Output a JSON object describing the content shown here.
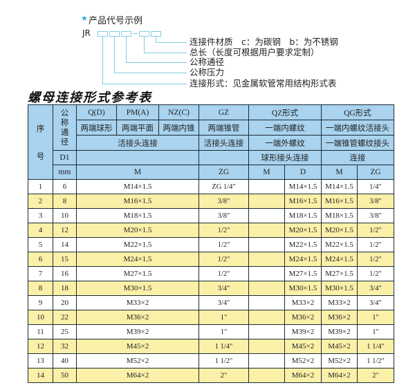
{
  "example": {
    "star_icon": "star-icon",
    "title": "产品代号示例",
    "code_prefix": "JR",
    "labels": [
      "连接件材质　c：为碳钢　b：为不锈钢",
      "总长（长度可根据用户要求定制）",
      "公称通径",
      "公称压力",
      "连接形式：见金属软管常用结构形式表"
    ]
  },
  "table_title": "螺母连接形式参考表",
  "colors": {
    "header_bg": "#a9d3ee",
    "alt_row_bg": "#fbf0a8",
    "guide_line": "#7fcfe0"
  },
  "header": {
    "seq": "序　号",
    "seq_top": "序",
    "seq_bottom": "号",
    "nominal": "公称通径",
    "row1": [
      "Q(D)",
      "PM(A)",
      "NZ(C)",
      "GZ",
      "QZ形式",
      "QG形式"
    ],
    "row2": [
      "两端球形",
      "两端平面",
      "两端内锥",
      "两端锥管",
      "一端内螺纹",
      "一端内螺纹活接头"
    ],
    "row3": [
      "活接头连接",
      "活接头连接",
      "一端外螺纹",
      "一端锥管螺纹接头"
    ],
    "row4": [
      "D1",
      "",
      "",
      "球形接头连接",
      "连接"
    ],
    "row5": [
      "mm",
      "M",
      "ZG",
      "M",
      "D",
      "M",
      "ZG"
    ]
  },
  "rows": [
    {
      "no": "1",
      "d1": "6",
      "m": "M14×1.5",
      "zg": "ZG 1/4\"",
      "qz_m": "",
      "qz_d": "M14×1.5",
      "qg_m": "M14×1.5",
      "qg_zg": "1/4\""
    },
    {
      "no": "2",
      "d1": "8",
      "m": "M16×1.5",
      "zg": "3/8\"",
      "qz_m": "",
      "qz_d": "M16×1.5",
      "qg_m": "M16×1.5",
      "qg_zg": "3/8\""
    },
    {
      "no": "3",
      "d1": "10",
      "m": "M18×1.5",
      "zg": "3/8\"",
      "qz_m": "",
      "qz_d": "M18×1.5",
      "qg_m": "M18×1.5",
      "qg_zg": "3/8\""
    },
    {
      "no": "4",
      "d1": "12",
      "m": "M20×1.5",
      "zg": "1/2\"",
      "qz_m": "",
      "qz_d": "M20×1.5",
      "qg_m": "M20×1.5",
      "qg_zg": "1/2\""
    },
    {
      "no": "5",
      "d1": "14",
      "m": "M22×1.5",
      "zg": "1/2\"",
      "qz_m": "",
      "qz_d": "M22×1.5",
      "qg_m": "M22×1.5",
      "qg_zg": "1/2\""
    },
    {
      "no": "6",
      "d1": "15",
      "m": "M24×1.5",
      "zg": "1/2\"",
      "qz_m": "",
      "qz_d": "M24×1.5",
      "qg_m": "M24×1.5",
      "qg_zg": "1/2\""
    },
    {
      "no": "7",
      "d1": "16",
      "m": "M27×1.5",
      "zg": "1/2\"",
      "qz_m": "",
      "qz_d": "M27×1.5",
      "qg_m": "M27×1.5",
      "qg_zg": "1/2\""
    },
    {
      "no": "8",
      "d1": "18",
      "m": "M30×1.5",
      "zg": "3/4\"",
      "qz_m": "",
      "qz_d": "M30×1.5",
      "qg_m": "M30×1.5",
      "qg_zg": "3/4\""
    },
    {
      "no": "9",
      "d1": "20",
      "m": "M33×2",
      "zg": "3/4\"",
      "qz_m": "",
      "qz_d": "M33×2",
      "qg_m": "M33×2",
      "qg_zg": "3/4\""
    },
    {
      "no": "10",
      "d1": "22",
      "m": "M36×2",
      "zg": "1\"",
      "qz_m": "",
      "qz_d": "M36×2",
      "qg_m": "M36×2",
      "qg_zg": "1\""
    },
    {
      "no": "11",
      "d1": "25",
      "m": "M39×2",
      "zg": "1\"",
      "qz_m": "",
      "qz_d": "M39×2",
      "qg_m": "M39×2",
      "qg_zg": "1\""
    },
    {
      "no": "12",
      "d1": "32",
      "m": "M45×2",
      "zg": "1 1/4\"",
      "qz_m": "",
      "qz_d": "M45×2",
      "qg_m": "M45×2",
      "qg_zg": "1 1/4\""
    },
    {
      "no": "13",
      "d1": "40",
      "m": "M52×2",
      "zg": "1 1/2\"",
      "qz_m": "",
      "qz_d": "M52×2",
      "qg_m": "M52×2",
      "qg_zg": "1 1/2\""
    },
    {
      "no": "14",
      "d1": "50",
      "m": "M64×2",
      "zg": "2\"",
      "qz_m": "",
      "qz_d": "M64×2",
      "qg_m": "M64×2",
      "qg_zg": "2\""
    }
  ]
}
